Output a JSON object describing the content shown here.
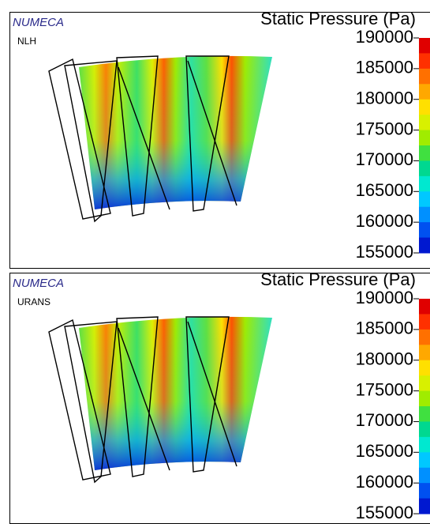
{
  "panels": [
    {
      "brand": "NUMECA",
      "label": "NLH",
      "colorbar": {
        "title": "Static Pressure (Pa)",
        "lim": [
          155000,
          190000
        ],
        "ticks": [
          190000,
          185000,
          180000,
          175000,
          170000,
          165000,
          160000,
          155000
        ],
        "colors": [
          "#e00000",
          "#ff3000",
          "#ff7000",
          "#ffa800",
          "#ffe000",
          "#d8f000",
          "#a0ec00",
          "#40e040",
          "#00d890",
          "#00e8d0",
          "#00c8ff",
          "#0090ff",
          "#0050f0",
          "#0018d0"
        ]
      }
    },
    {
      "brand": "NUMECA",
      "label": "URANS",
      "colorbar": {
        "title": "Static Pressure (Pa)",
        "lim": [
          155000,
          190000
        ],
        "ticks": [
          190000,
          185000,
          180000,
          175000,
          170000,
          165000,
          160000,
          155000
        ],
        "colors": [
          "#e00000",
          "#ff3000",
          "#ff7000",
          "#ffa800",
          "#ffe000",
          "#d8f000",
          "#a0ec00",
          "#40e040",
          "#00d890",
          "#00e8d0",
          "#00c8ff",
          "#0090ff",
          "#0050f0",
          "#0018d0"
        ]
      }
    }
  ]
}
